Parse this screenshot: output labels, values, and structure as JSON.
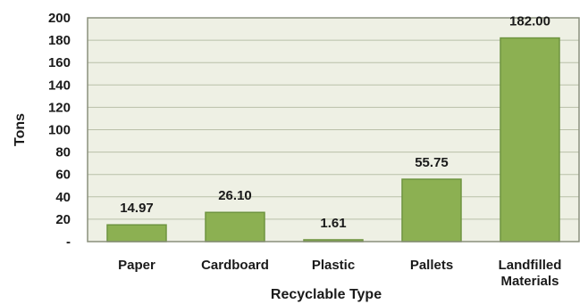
{
  "chart_data": {
    "type": "bar",
    "title": "",
    "xlabel": "Recyclable Type",
    "ylabel": "Tons",
    "ylim": [
      0,
      200
    ],
    "yticks": [
      0,
      20,
      40,
      60,
      80,
      100,
      120,
      140,
      160,
      180,
      200
    ],
    "ytick_labels": [
      "-",
      "20",
      "40",
      "60",
      "80",
      "100",
      "120",
      "140",
      "160",
      "180",
      "200"
    ],
    "categories": [
      [
        "Paper"
      ],
      [
        "Cardboard"
      ],
      [
        "Plastic"
      ],
      [
        "Pallets"
      ],
      [
        "Landfilled",
        "Materials"
      ]
    ],
    "values": [
      14.97,
      26.1,
      1.61,
      55.75,
      182.0
    ],
    "value_labels": [
      "14.97",
      "26.10",
      "1.61",
      "55.75",
      "182.00"
    ],
    "grid": true,
    "legend": "none",
    "colors": {
      "bar_fill": "#8cb052",
      "bar_stroke": "#6e9440",
      "plot_bg": "#eef0e4",
      "grid": "#b9bfa8",
      "frame": "#8a8f7c"
    }
  }
}
